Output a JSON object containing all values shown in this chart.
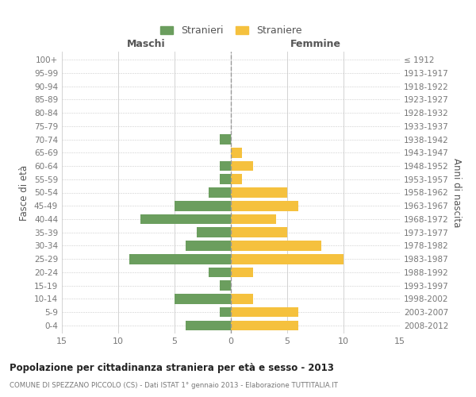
{
  "age_groups": [
    "0-4",
    "5-9",
    "10-14",
    "15-19",
    "20-24",
    "25-29",
    "30-34",
    "35-39",
    "40-44",
    "45-49",
    "50-54",
    "55-59",
    "60-64",
    "65-69",
    "70-74",
    "75-79",
    "80-84",
    "85-89",
    "90-94",
    "95-99",
    "100+"
  ],
  "birth_years": [
    "2008-2012",
    "2003-2007",
    "1998-2002",
    "1993-1997",
    "1988-1992",
    "1983-1987",
    "1978-1982",
    "1973-1977",
    "1968-1972",
    "1963-1967",
    "1958-1962",
    "1953-1957",
    "1948-1952",
    "1943-1947",
    "1938-1942",
    "1933-1937",
    "1928-1932",
    "1923-1927",
    "1918-1922",
    "1913-1917",
    "≤ 1912"
  ],
  "males": [
    4,
    1,
    5,
    1,
    2,
    9,
    4,
    3,
    8,
    5,
    2,
    1,
    1,
    0,
    1,
    0,
    0,
    0,
    0,
    0,
    0
  ],
  "females": [
    6,
    6,
    2,
    0,
    2,
    10,
    8,
    5,
    4,
    6,
    5,
    1,
    2,
    1,
    0,
    0,
    0,
    0,
    0,
    0,
    0
  ],
  "male_color": "#6b9e5e",
  "female_color": "#f5c13e",
  "title": "Popolazione per cittadinanza straniera per età e sesso - 2013",
  "subtitle": "COMUNE DI SPEZZANO PICCOLO (CS) - Dati ISTAT 1° gennaio 2013 - Elaborazione TUTTITALIA.IT",
  "legend_male": "Stranieri",
  "legend_female": "Straniere",
  "xlabel_left": "Maschi",
  "xlabel_right": "Femmine",
  "ylabel_left": "Fasce di età",
  "ylabel_right": "Anni di nascita",
  "xlim": 15,
  "bg_color": "#ffffff",
  "grid_color": "#cccccc",
  "text_color": "#777777",
  "axis_label_color": "#555555"
}
